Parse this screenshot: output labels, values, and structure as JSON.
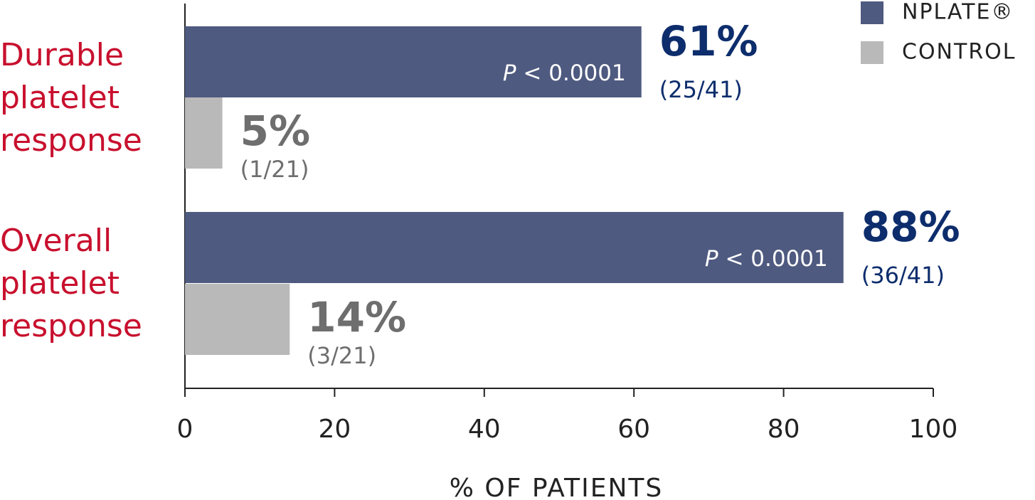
{
  "chart_data": {
    "type": "hbar",
    "categories": [
      "Durable platelet response",
      "Overall platelet response"
    ],
    "series": [
      {
        "name": "NPLATE®",
        "color": "#4f5a80",
        "label_color": "#0d2d6c",
        "values": [
          61,
          88
        ],
        "value_labels": [
          "61%",
          "88%"
        ],
        "counts": [
          "(25/41)",
          "(36/41)"
        ],
        "p_values": [
          "P < 0.0001",
          "P < 0.0001"
        ]
      },
      {
        "name": "CONTROL",
        "color": "#b9b9b9",
        "label_color": "#6e6e6e",
        "values": [
          5,
          14
        ],
        "value_labels": [
          "5%",
          "14%"
        ],
        "counts": [
          "(1/21)",
          "(3/21)"
        ]
      }
    ],
    "xlabel": "% OF PATIENTS",
    "xlim": [
      0,
      100
    ],
    "xticks": [
      0,
      20,
      40,
      60,
      80,
      100
    ],
    "category_color": "#c8102e",
    "legend": "top-right"
  }
}
